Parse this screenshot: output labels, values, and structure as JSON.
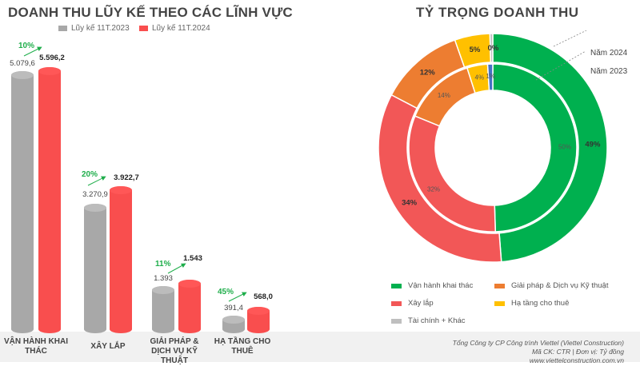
{
  "chart_data": [
    {
      "type": "bar",
      "title": "DOANH THU LŨY KẾ THEO CÁC LĨNH VỰC",
      "categories": [
        "VẬN HÀNH KHAI THÁC",
        "XÂY LẮP",
        "GIẢI PHÁP & DỊCH VỤ KỸ THUẬT",
        "HẠ TẦNG CHO THUÊ"
      ],
      "series": [
        {
          "name": "Lũy kế 11T.2023",
          "color": "#a8a8a8",
          "values": [
            5079.6,
            3270.9,
            1393,
            391.4
          ],
          "labels": [
            "5.079,6",
            "3.270,9",
            "1.393",
            "391,4"
          ]
        },
        {
          "name": "Lũy kế 11T.2024",
          "color": "#f94e4e",
          "values": [
            5596.2,
            3922.7,
            1543,
            568.0
          ],
          "labels": [
            "5.596,2",
            "3.922,7",
            "1.543",
            "568,0"
          ]
        }
      ],
      "growth": [
        "10%",
        "20%",
        "11%",
        "45%"
      ]
    },
    {
      "type": "pie",
      "title": "TỶ TRỌNG DOANH THU",
      "categories": [
        "Vận hành khai thác",
        "Xây lắp",
        "Giải pháp & Dịch vụ Kỹ thuật",
        "Hạ tầng cho thuê",
        "Tài chính + Khác"
      ],
      "colors": [
        "#00b04f",
        "#f25757",
        "#ed7d31",
        "#ffc000",
        "#bfbfbf"
      ],
      "series": [
        {
          "name": "Năm 2024",
          "values": [
            49,
            34,
            12,
            5,
            0.4
          ],
          "labels": [
            "49%",
            "34%",
            "12%",
            "5%",
            "0%"
          ],
          "colors": [
            "#00b04f",
            "#f25757",
            "#ed7d31",
            "#ffc000",
            "#bfbfbf"
          ]
        },
        {
          "name": "Năm 2023",
          "values": [
            50,
            32,
            14,
            4,
            1
          ],
          "labels": [
            "50%",
            "32%",
            "14%",
            "4%",
            "1%"
          ],
          "colors": [
            "#00b04f",
            "#f25757",
            "#ed7d31",
            "#ffc000",
            "#4472c4"
          ]
        }
      ]
    }
  ],
  "footer": {
    "line1": "Tổng Công ty CP Công trình Viettel (Viettel Construction)",
    "line2": "Mã CK: CTR  |  Đơn vị: Tỷ đồng",
    "line3": "www.viettelconstruction.com.vn"
  }
}
